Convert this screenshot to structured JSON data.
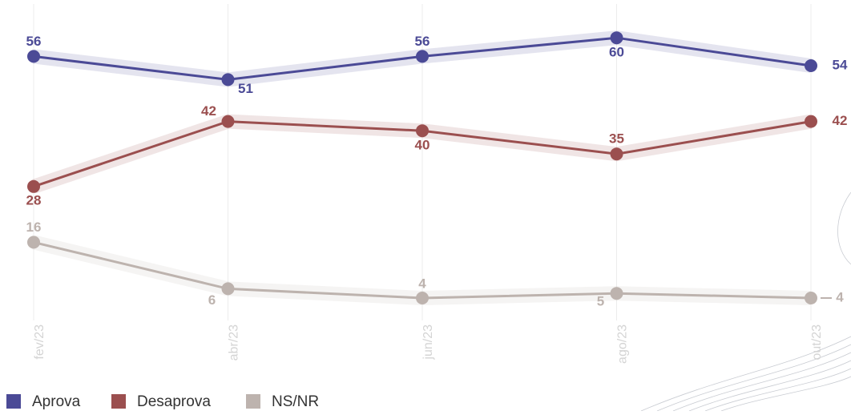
{
  "chart_data": {
    "type": "line",
    "categories": [
      "fev/23",
      "abr/23",
      "jun/23",
      "ago/23",
      "out/23"
    ],
    "series": [
      {
        "name": "Aprova",
        "color": "#4b4a96",
        "values": [
          56,
          51,
          56,
          60,
          54
        ]
      },
      {
        "name": "Desaprova",
        "color": "#9b4f4f",
        "values": [
          28,
          42,
          40,
          35,
          42
        ]
      },
      {
        "name": "NS/NR",
        "color": "#bdb3ae",
        "values": [
          16,
          6,
          4,
          5,
          4
        ]
      }
    ],
    "grid": true
  }
}
